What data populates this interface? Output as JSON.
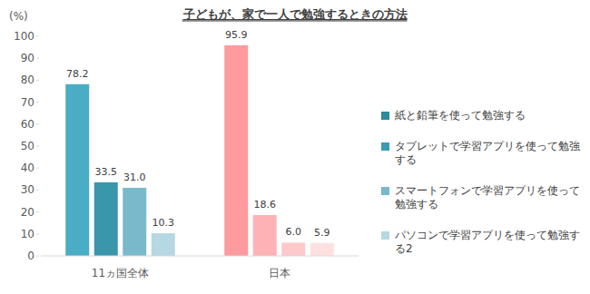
{
  "chart_data": {
    "type": "bar",
    "title": "子どもが、家で一人で勉強するときの方法",
    "y_label": "(%)",
    "categories": [
      "11ヵ国全体",
      "日本"
    ],
    "series": [
      {
        "name": "紙と鉛筆を使って勉強する",
        "color": "#2f8a9c",
        "colors": [
          "#4bacc6",
          "#ff9a9e"
        ],
        "values": [
          78.2,
          95.9
        ]
      },
      {
        "name": "タブレットで学習アプリを使って勉強する",
        "color": "#3a9cb3",
        "colors": [
          "#3a96ab",
          "#ffb2b5"
        ],
        "values": [
          33.5,
          18.6
        ]
      },
      {
        "name": "スマートフォンで学習アプリを使って勉強する",
        "color": "#79b8ca",
        "colors": [
          "#7ab9cb",
          "#ffc8ca"
        ],
        "values": [
          31,
          6
        ],
        "value_labels": [
          "31.0",
          "6.0"
        ]
      },
      {
        "name": "パソコンで学習アプリを使って勉強する2",
        "color": "#b5d8e2",
        "colors": [
          "#b5d8e2",
          "#ffe0e1"
        ],
        "values": [
          10.3,
          5.9
        ]
      }
    ],
    "ylim": [
      0,
      100
    ],
    "yticks": [
      0,
      10,
      20,
      30,
      40,
      50,
      60,
      70,
      80,
      90,
      100
    ],
    "grid": false,
    "data_labels": true,
    "legend": "right"
  }
}
